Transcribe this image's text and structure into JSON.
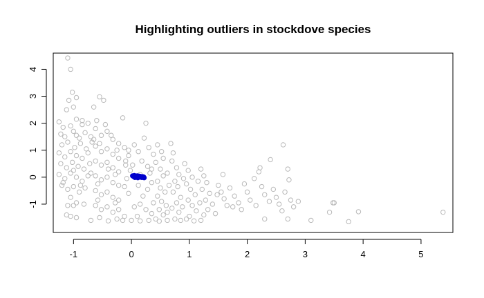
{
  "chart_data": {
    "type": "scatter",
    "title": "Highlighting outliers in stockdove species",
    "xlabel": "",
    "ylabel": "",
    "xlim": [
      -1.35,
      5.55
    ],
    "ylim": [
      -2.05,
      4.6
    ],
    "x_ticks": [
      -1,
      0,
      1,
      2,
      3,
      4,
      5
    ],
    "x_tick_labels": [
      "-1",
      "0",
      "1",
      "2",
      "3",
      "4",
      "5"
    ],
    "y_ticks": [
      -1,
      0,
      1,
      2,
      3,
      4
    ],
    "y_tick_labels": [
      "-1",
      "0",
      "1",
      "2",
      "3",
      "4"
    ],
    "grid": false,
    "legend": "none",
    "colors": {
      "points": "#b8b8b8",
      "highlight": "#0000cc",
      "axis": "#000000"
    },
    "series": [
      {
        "marker": "open-circle",
        "color": "#b8b8b8",
        "points": [
          [
            -1.1,
            4.42
          ],
          [
            -1.05,
            4.0
          ],
          [
            -1.02,
            3.15
          ],
          [
            -0.95,
            2.95
          ],
          [
            -1.08,
            2.85
          ],
          [
            -1.12,
            2.5
          ],
          [
            -1.0,
            2.6
          ],
          [
            -0.65,
            2.6
          ],
          [
            -0.55,
            2.98
          ],
          [
            -0.48,
            2.85
          ],
          [
            -0.15,
            2.2
          ],
          [
            0.25,
            2.0
          ],
          [
            -0.6,
            2.1
          ],
          [
            -0.45,
            1.95
          ],
          [
            -1.25,
            2.05
          ],
          [
            -1.18,
            1.85
          ],
          [
            -1.05,
            1.9
          ],
          [
            -0.95,
            2.15
          ],
          [
            -0.85,
            1.95
          ],
          [
            -0.75,
            2.0
          ],
          [
            -1.22,
            1.6
          ],
          [
            -1.15,
            1.5
          ],
          [
            -1.0,
            1.7
          ],
          [
            -0.9,
            1.45
          ],
          [
            -0.8,
            1.65
          ],
          [
            -0.7,
            1.5
          ],
          [
            -1.2,
            1.2
          ],
          [
            -1.1,
            1.3
          ],
          [
            -0.98,
            1.1
          ],
          [
            -0.88,
            1.25
          ],
          [
            -0.78,
            1.05
          ],
          [
            -0.68,
            1.3
          ],
          [
            -1.25,
            0.9
          ],
          [
            -1.15,
            0.75
          ],
          [
            -1.05,
            0.95
          ],
          [
            -0.95,
            0.8
          ],
          [
            -0.85,
            0.7
          ],
          [
            -0.75,
            0.9
          ],
          [
            -1.22,
            0.5
          ],
          [
            -1.12,
            0.35
          ],
          [
            -1.02,
            0.55
          ],
          [
            -0.92,
            0.4
          ],
          [
            -0.82,
            0.3
          ],
          [
            -0.72,
            0.5
          ],
          [
            -1.25,
            0.1
          ],
          [
            -1.15,
            -0.05
          ],
          [
            -1.05,
            0.15
          ],
          [
            -0.95,
            0.0
          ],
          [
            -0.85,
            -0.15
          ],
          [
            -0.75,
            0.05
          ],
          [
            -1.2,
            -0.3
          ],
          [
            -1.1,
            -0.45
          ],
          [
            -1.0,
            -0.35
          ],
          [
            -0.9,
            -0.55
          ],
          [
            -0.8,
            -0.4
          ],
          [
            -1.05,
            -0.75
          ],
          [
            -0.95,
            -0.95
          ],
          [
            -1.1,
            -1.05
          ],
          [
            -1.0,
            -1.05
          ],
          [
            -0.82,
            -1.0
          ],
          [
            -1.05,
            -1.45
          ],
          [
            -0.95,
            -1.5
          ],
          [
            -1.12,
            -1.4
          ],
          [
            -0.62,
            1.8
          ],
          [
            -0.52,
            1.55
          ],
          [
            -0.42,
            1.7
          ],
          [
            -0.32,
            1.4
          ],
          [
            -0.22,
            1.25
          ],
          [
            -0.62,
            1.15
          ],
          [
            -0.52,
            0.95
          ],
          [
            -0.42,
            1.05
          ],
          [
            -0.32,
            0.85
          ],
          [
            -0.22,
            0.7
          ],
          [
            -0.62,
            0.6
          ],
          [
            -0.52,
            0.45
          ],
          [
            -0.42,
            0.55
          ],
          [
            -0.32,
            0.35
          ],
          [
            -0.22,
            0.2
          ],
          [
            -0.62,
            0.05
          ],
          [
            -0.52,
            -0.1
          ],
          [
            -0.42,
            0.0
          ],
          [
            -0.32,
            -0.2
          ],
          [
            -0.22,
            -0.3
          ],
          [
            -0.62,
            -0.5
          ],
          [
            -0.52,
            -0.65
          ],
          [
            -0.42,
            -0.55
          ],
          [
            -0.32,
            -0.75
          ],
          [
            -0.22,
            -0.85
          ],
          [
            -0.62,
            -1.05
          ],
          [
            -0.52,
            -1.2
          ],
          [
            -0.42,
            -1.1
          ],
          [
            -0.32,
            -1.3
          ],
          [
            -0.22,
            -1.2
          ],
          [
            -0.7,
            -1.6
          ],
          [
            -0.55,
            -1.5
          ],
          [
            -0.4,
            -1.62
          ],
          [
            -0.25,
            -1.55
          ],
          [
            -0.12,
            -1.45
          ],
          [
            -0.12,
            1.1
          ],
          [
            -0.05,
            0.8
          ],
          [
            -0.1,
            0.45
          ],
          [
            -0.02,
            0.25
          ],
          [
            -0.08,
            -0.05
          ],
          [
            -0.12,
            -0.35
          ],
          [
            -0.05,
            -0.6
          ],
          [
            0.05,
            1.2
          ],
          [
            0.12,
            0.95
          ],
          [
            0.18,
            0.6
          ],
          [
            0.28,
            0.4
          ],
          [
            0.32,
            0.15
          ],
          [
            0.35,
            -0.2
          ],
          [
            0.28,
            -0.45
          ],
          [
            0.2,
            -0.7
          ],
          [
            0.15,
            -1.0
          ],
          [
            0.25,
            -1.2
          ],
          [
            0.1,
            -1.45
          ],
          [
            0.0,
            -1.6
          ],
          [
            0.3,
            -1.6
          ],
          [
            0.22,
            1.45
          ],
          [
            0.3,
            1.1
          ],
          [
            0.38,
            0.85
          ],
          [
            0.42,
            0.55
          ],
          [
            0.45,
            1.2
          ],
          [
            0.52,
            0.95
          ],
          [
            0.55,
            0.7
          ],
          [
            0.5,
            0.3
          ],
          [
            0.55,
            0.05
          ],
          [
            0.45,
            -0.15
          ],
          [
            0.5,
            -0.4
          ],
          [
            0.58,
            -0.55
          ],
          [
            0.45,
            -0.7
          ],
          [
            0.52,
            -0.9
          ],
          [
            0.6,
            -1.05
          ],
          [
            0.48,
            -1.2
          ],
          [
            0.55,
            -1.4
          ],
          [
            0.42,
            -1.55
          ],
          [
            0.62,
            -1.6
          ],
          [
            0.68,
            1.25
          ],
          [
            0.72,
            0.9
          ],
          [
            0.7,
            0.6
          ],
          [
            0.78,
            0.35
          ],
          [
            0.82,
            0.1
          ],
          [
            0.75,
            -0.15
          ],
          [
            0.8,
            -0.35
          ],
          [
            0.72,
            -0.55
          ],
          [
            0.85,
            -0.75
          ],
          [
            0.78,
            -0.95
          ],
          [
            0.7,
            -1.15
          ],
          [
            0.82,
            -1.3
          ],
          [
            0.75,
            -1.55
          ],
          [
            0.92,
            0.5
          ],
          [
            0.98,
            0.25
          ],
          [
            1.05,
            0.0
          ],
          [
            0.95,
            -0.25
          ],
          [
            1.02,
            -0.45
          ],
          [
            1.1,
            -0.65
          ],
          [
            0.98,
            -0.85
          ],
          [
            1.05,
            -1.05
          ],
          [
            1.12,
            -1.25
          ],
          [
            1.0,
            -1.45
          ],
          [
            1.08,
            -1.62
          ],
          [
            1.2,
            0.3
          ],
          [
            1.25,
            0.05
          ],
          [
            1.3,
            -0.2
          ],
          [
            1.22,
            -0.45
          ],
          [
            1.35,
            -0.6
          ],
          [
            1.28,
            -0.85
          ],
          [
            1.4,
            -1.0
          ],
          [
            1.32,
            -1.2
          ],
          [
            1.45,
            -1.35
          ],
          [
            1.5,
            -0.3
          ],
          [
            1.55,
            -0.55
          ],
          [
            1.6,
            -0.8
          ],
          [
            1.65,
            -1.05
          ],
          [
            1.58,
            0.1
          ],
          [
            1.7,
            -0.4
          ],
          [
            1.78,
            -0.7
          ],
          [
            1.85,
            -0.95
          ],
          [
            1.9,
            -1.2
          ],
          [
            1.95,
            -0.25
          ],
          [
            2.0,
            -0.55
          ],
          [
            2.05,
            -0.85
          ],
          [
            2.15,
            -1.05
          ],
          [
            2.12,
            -0.05
          ],
          [
            2.2,
            0.2
          ],
          [
            2.22,
            0.35
          ],
          [
            2.25,
            -0.35
          ],
          [
            2.3,
            -0.65
          ],
          [
            2.38,
            -0.9
          ],
          [
            2.4,
            0.65
          ],
          [
            2.45,
            -0.45
          ],
          [
            2.5,
            -0.75
          ],
          [
            2.55,
            -1.0
          ],
          [
            2.6,
            -1.25
          ],
          [
            2.65,
            -0.55
          ],
          [
            2.7,
            0.3
          ],
          [
            2.7,
            -1.55
          ],
          [
            2.75,
            -0.85
          ],
          [
            2.8,
            -1.1
          ],
          [
            2.88,
            -0.9
          ],
          [
            2.62,
            1.2
          ],
          [
            2.3,
            -1.55
          ],
          [
            2.72,
            -0.1
          ],
          [
            3.1,
            -1.6
          ],
          [
            3.42,
            -1.3
          ],
          [
            3.48,
            -0.95
          ],
          [
            3.5,
            -0.95
          ],
          [
            3.75,
            -1.65
          ],
          [
            3.92,
            -1.28
          ],
          [
            5.38,
            -1.3
          ],
          [
            -1.18,
            -0.2
          ],
          [
            -0.88,
            -0.3
          ],
          [
            -0.58,
            -0.25
          ],
          [
            -0.28,
            0.1
          ],
          [
            0.02,
            0.45
          ],
          [
            0.35,
            0.3
          ],
          [
            0.62,
            0.15
          ],
          [
            0.9,
            -0.05
          ],
          [
            1.15,
            -0.15
          ],
          [
            -1.0,
            0.25
          ],
          [
            -0.7,
            0.15
          ],
          [
            -0.4,
            0.3
          ],
          [
            -0.1,
            0.6
          ],
          [
            0.15,
            0.1
          ],
          [
            -0.95,
            1.55
          ],
          [
            -0.65,
            1.4
          ],
          [
            -0.35,
            1.55
          ],
          [
            -0.05,
            1.0
          ],
          [
            -0.85,
            2.1
          ],
          [
            -0.55,
            1.25
          ],
          [
            -0.25,
            1.0
          ],
          [
            0.12,
            -0.3
          ],
          [
            0.38,
            -0.95
          ],
          [
            0.65,
            -0.3
          ],
          [
            0.88,
            -1.1
          ],
          [
            1.18,
            -0.95
          ],
          [
            1.48,
            -0.65
          ],
          [
            1.75,
            -1.1
          ],
          [
            -0.58,
            -0.85
          ],
          [
            -0.28,
            -0.95
          ],
          [
            0.05,
            -1.1
          ],
          [
            0.35,
            -1.35
          ],
          [
            0.62,
            -1.3
          ],
          [
            0.95,
            -1.55
          ],
          [
            1.25,
            -1.4
          ],
          [
            -0.15,
            -1.6
          ],
          [
            0.15,
            -1.62
          ],
          [
            0.48,
            -1.63
          ],
          [
            0.85,
            -1.6
          ],
          [
            1.2,
            -1.6
          ]
        ]
      },
      {
        "marker": "filled-circle",
        "color": "#0000cc",
        "points": [
          [
            0.02,
            0.05
          ],
          [
            0.04,
            0.02
          ],
          [
            0.05,
            0.06
          ],
          [
            0.06,
            -0.01
          ],
          [
            0.07,
            0.04
          ],
          [
            0.08,
            0.01
          ],
          [
            0.09,
            0.03
          ],
          [
            0.1,
            0.05
          ],
          [
            0.11,
            -0.02
          ],
          [
            0.12,
            0.02
          ],
          [
            0.13,
            0.04
          ],
          [
            0.14,
            0.0
          ],
          [
            0.15,
            0.03
          ],
          [
            0.16,
            0.01
          ],
          [
            0.17,
            0.02
          ],
          [
            0.18,
            -0.01
          ],
          [
            0.19,
            0.02
          ],
          [
            0.2,
            0.0
          ],
          [
            0.21,
            0.01
          ],
          [
            0.22,
            -0.02
          ]
        ]
      }
    ]
  }
}
